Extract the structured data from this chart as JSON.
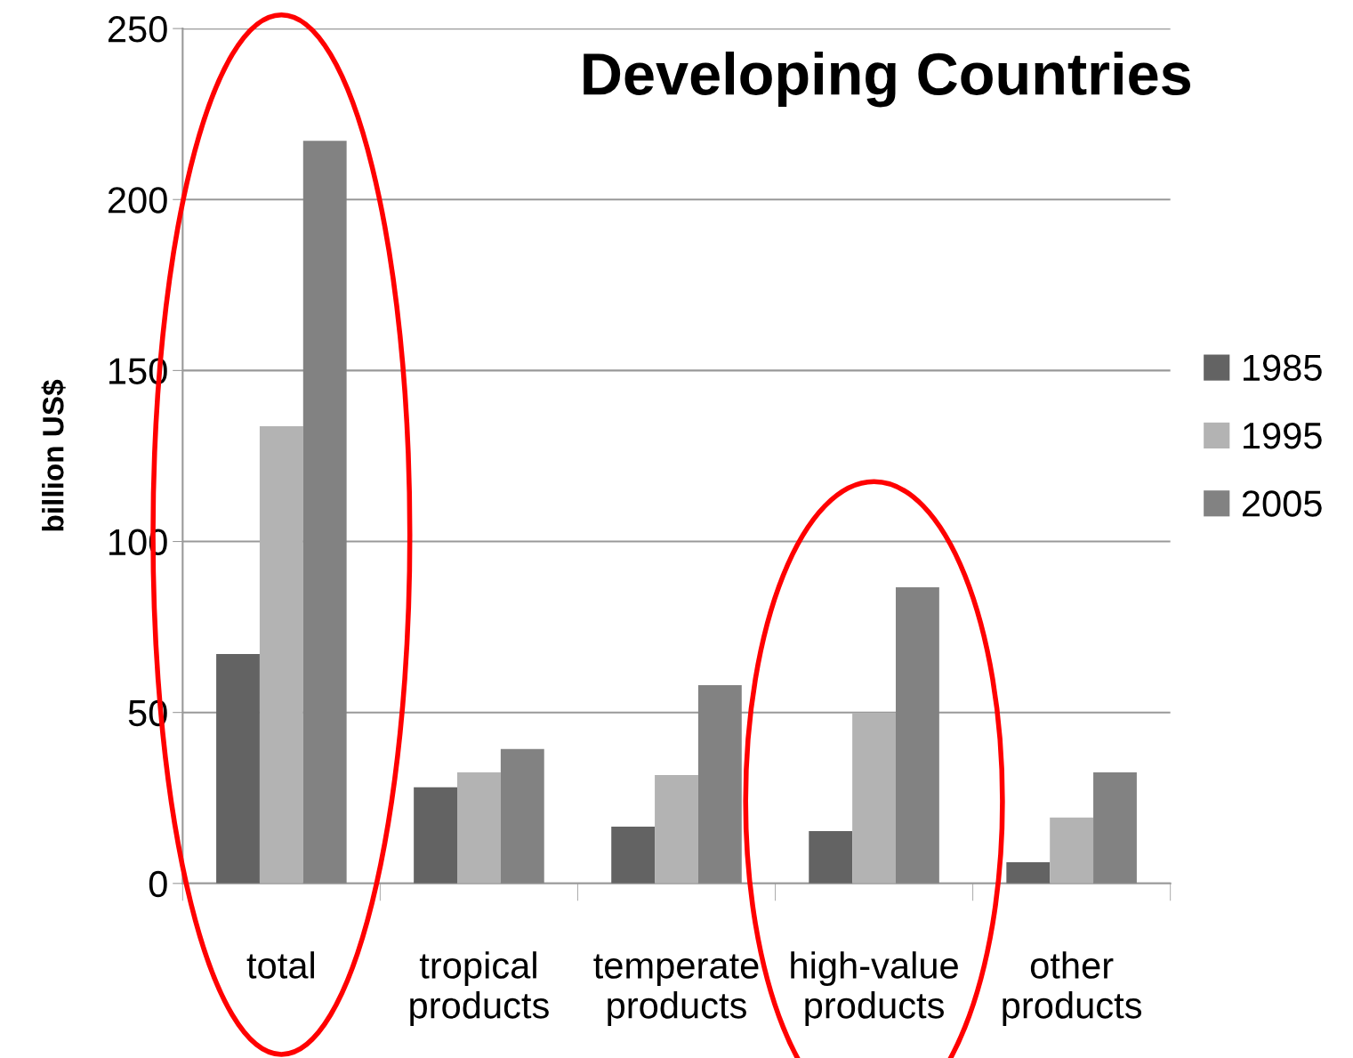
{
  "chart_data": {
    "type": "bar",
    "title": "Developing Countries",
    "ylabel": "billion US$",
    "categories": [
      "total",
      "tropical\nproducts",
      "temperate\nproducts",
      "high-value\nproducts",
      "other\nproducts"
    ],
    "series": [
      {
        "name": "1985",
        "color": "#636363",
        "values": [
          67.1,
          28.1,
          16.6,
          15.3,
          6.2
        ]
      },
      {
        "name": "1995",
        "color": "#b3b3b3",
        "values": [
          133.7,
          32.5,
          31.7,
          49.7,
          19.3
        ]
      },
      {
        "name": "2005",
        "color": "#828282",
        "values": [
          217.2,
          39.3,
          58.0,
          86.6,
          32.5
        ]
      }
    ],
    "ylim": [
      0,
      250
    ],
    "yticks": [
      0,
      50,
      100,
      150,
      200,
      250
    ],
    "grid": "y",
    "legend": "right"
  }
}
